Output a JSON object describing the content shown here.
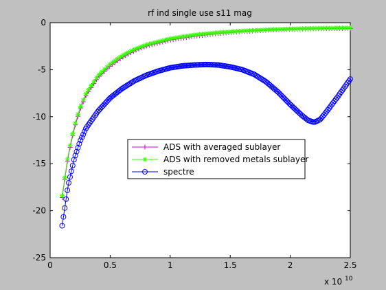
{
  "chart_data": {
    "type": "line",
    "title": "rf ind single use s11 mag",
    "xlabel": "",
    "ylabel": "",
    "x_exponent_label": "x 10",
    "x_exponent_power": "10",
    "xlim": [
      0,
      2.5
    ],
    "ylim": [
      -25,
      0
    ],
    "x_ticks": [
      0,
      0.5,
      1,
      1.5,
      2,
      2.5
    ],
    "x_tick_labels": [
      "0",
      "0.5",
      "1",
      "1.5",
      "2",
      "2.5"
    ],
    "y_ticks": [
      -25,
      -20,
      -15,
      -10,
      -5,
      0
    ],
    "y_tick_labels": [
      "-25",
      "-20",
      "-15",
      "-10",
      "-5",
      "0"
    ],
    "grid": false,
    "legend_position": "center",
    "series": [
      {
        "name": "ADS with averaged sublayer",
        "color": "#cc00cc",
        "marker": "plus",
        "x": [
          0.1,
          0.15,
          0.2,
          0.25,
          0.3,
          0.4,
          0.5,
          0.6,
          0.7,
          0.8,
          1.0,
          1.2,
          1.4,
          1.6,
          1.8,
          2.0,
          2.2,
          2.5
        ],
        "y": [
          -18.6,
          -14.2,
          -11.3,
          -9.2,
          -7.7,
          -5.8,
          -4.6,
          -3.7,
          -3.0,
          -2.5,
          -1.85,
          -1.45,
          -1.15,
          -0.95,
          -0.8,
          -0.7,
          -0.65,
          -0.6
        ]
      },
      {
        "name": "ADS with removed metals sublayer",
        "color": "#33ff00",
        "marker": "star",
        "x": [
          0.1,
          0.15,
          0.2,
          0.25,
          0.3,
          0.4,
          0.5,
          0.6,
          0.7,
          0.8,
          1.0,
          1.2,
          1.4,
          1.6,
          1.8,
          2.0,
          2.2,
          2.5
        ],
        "y": [
          -18.4,
          -14.0,
          -11.1,
          -9.0,
          -7.5,
          -5.6,
          -4.4,
          -3.5,
          -2.85,
          -2.35,
          -1.7,
          -1.3,
          -1.05,
          -0.88,
          -0.75,
          -0.66,
          -0.6,
          -0.55
        ]
      },
      {
        "name": "spectre",
        "color": "#0000ff",
        "marker": "circle",
        "x": [
          0.1,
          0.15,
          0.2,
          0.25,
          0.3,
          0.4,
          0.5,
          0.6,
          0.7,
          0.8,
          0.9,
          1.0,
          1.1,
          1.2,
          1.3,
          1.4,
          1.5,
          1.6,
          1.7,
          1.8,
          1.9,
          2.0,
          2.1,
          2.15,
          2.2,
          2.25,
          2.3,
          2.4,
          2.5
        ],
        "y": [
          -21.6,
          -17.3,
          -14.5,
          -12.6,
          -11.2,
          -9.4,
          -8.0,
          -7.0,
          -6.2,
          -5.6,
          -5.15,
          -4.8,
          -4.6,
          -4.5,
          -4.45,
          -4.5,
          -4.7,
          -5.0,
          -5.5,
          -6.3,
          -7.4,
          -8.7,
          -9.9,
          -10.4,
          -10.6,
          -10.3,
          -9.5,
          -7.8,
          -6.0
        ]
      }
    ]
  }
}
